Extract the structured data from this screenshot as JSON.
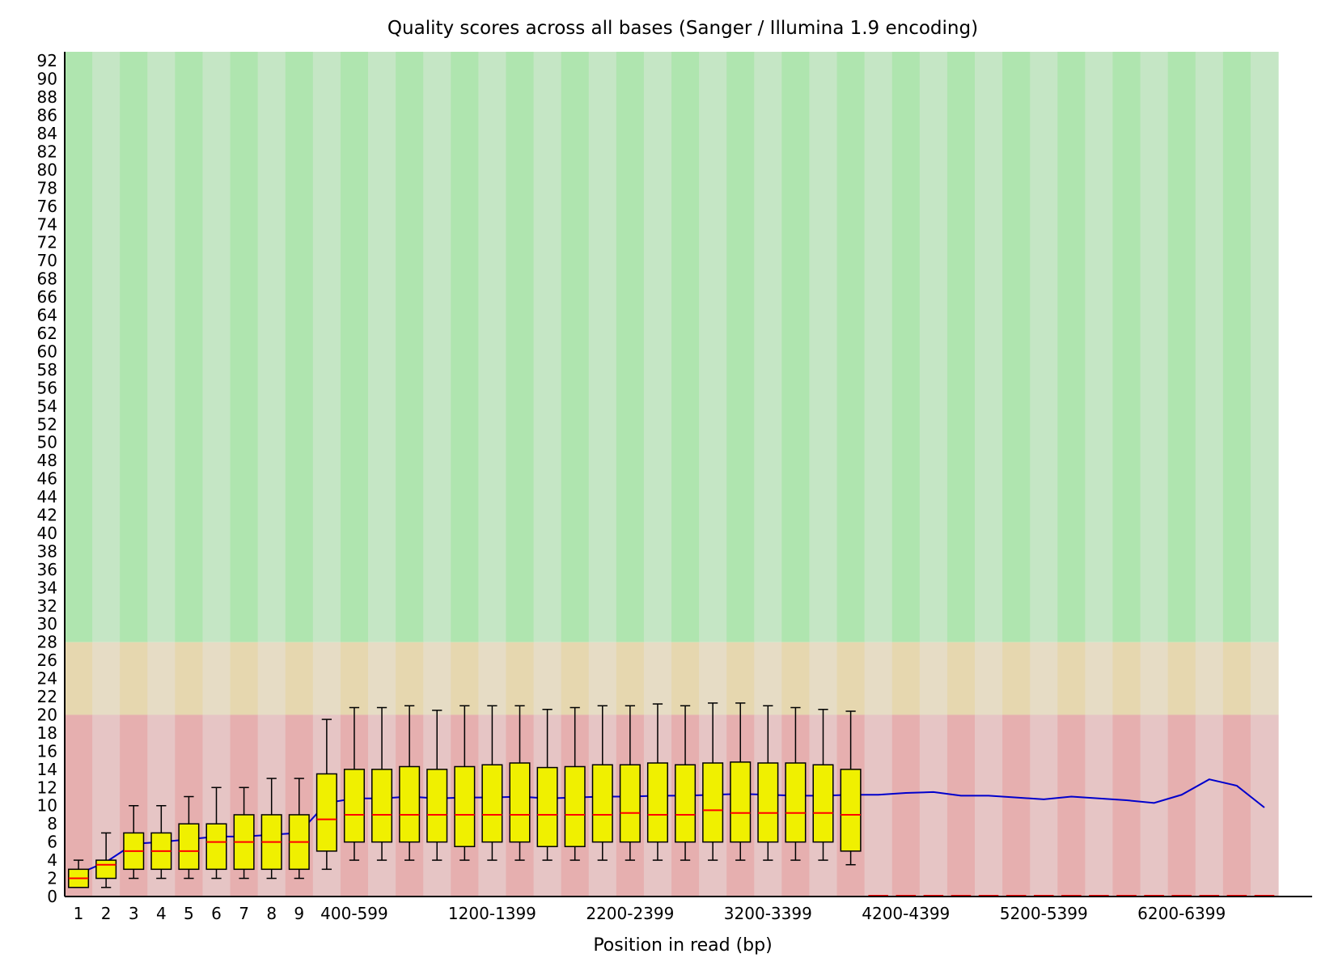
{
  "chart_data": {
    "type": "boxplot",
    "title": "Quality scores across all bases (Sanger / Illumina 1.9 encoding)",
    "xlabel": "Position in read (bp)",
    "ylabel": "",
    "ylim": [
      0,
      93
    ],
    "yticks": [
      0,
      2,
      4,
      6,
      8,
      10,
      12,
      14,
      16,
      18,
      20,
      22,
      24,
      26,
      28,
      30,
      32,
      34,
      36,
      38,
      40,
      42,
      44,
      46,
      48,
      50,
      52,
      54,
      56,
      58,
      60,
      62,
      64,
      66,
      68,
      70,
      72,
      74,
      76,
      78,
      80,
      82,
      84,
      86,
      88,
      90,
      92
    ],
    "x_tick_labels": [
      "1",
      "2",
      "3",
      "4",
      "5",
      "6",
      "7",
      "8",
      "9",
      "400-599",
      "1200-1399",
      "2200-2399",
      "3200-3399",
      "4200-4399",
      "5200-5399",
      "6200-6399"
    ],
    "x_tick_label_bins": [
      0,
      1,
      2,
      3,
      4,
      5,
      6,
      7,
      8,
      10,
      15,
      20,
      25,
      30,
      35,
      40
    ],
    "bin_count": 44,
    "background_zones": [
      {
        "name": "good",
        "from": 28,
        "to": 93,
        "colors": [
          "#afe5af",
          "#c5e6c5"
        ]
      },
      {
        "name": "reasonable",
        "from": 20,
        "to": 28,
        "colors": [
          "#e6d7af",
          "#e6dcc5"
        ]
      },
      {
        "name": "poor",
        "from": 0,
        "to": 20,
        "colors": [
          "#e6afaf",
          "#e6c5c5"
        ]
      }
    ],
    "colors": {
      "box": "#f0f000",
      "median": "#ff0000",
      "mean_line": "#0000cc",
      "whisker": "#000000",
      "axis": "#000000"
    },
    "boxes": [
      {
        "bin": 0,
        "whisker_low": 1,
        "q1": 1,
        "median": 2,
        "q3": 3,
        "whisker_high": 4
      },
      {
        "bin": 1,
        "whisker_low": 1,
        "q1": 2,
        "median": 3.5,
        "q3": 4,
        "whisker_high": 7
      },
      {
        "bin": 2,
        "whisker_low": 2,
        "q1": 3,
        "median": 5,
        "q3": 7,
        "whisker_high": 10
      },
      {
        "bin": 3,
        "whisker_low": 2,
        "q1": 3,
        "median": 5,
        "q3": 7,
        "whisker_high": 10
      },
      {
        "bin": 4,
        "whisker_low": 2,
        "q1": 3,
        "median": 5,
        "q3": 8,
        "whisker_high": 11
      },
      {
        "bin": 5,
        "whisker_low": 2,
        "q1": 3,
        "median": 6,
        "q3": 8,
        "whisker_high": 12
      },
      {
        "bin": 6,
        "whisker_low": 2,
        "q1": 3,
        "median": 6,
        "q3": 9,
        "whisker_high": 12
      },
      {
        "bin": 7,
        "whisker_low": 2,
        "q1": 3,
        "median": 6,
        "q3": 9,
        "whisker_high": 13
      },
      {
        "bin": 8,
        "whisker_low": 2,
        "q1": 3,
        "median": 6,
        "q3": 9,
        "whisker_high": 13
      },
      {
        "bin": 9,
        "whisker_low": 3,
        "q1": 5,
        "median": 8.5,
        "q3": 13.5,
        "whisker_high": 19.5
      },
      {
        "bin": 10,
        "whisker_low": 4,
        "q1": 6,
        "median": 9,
        "q3": 14,
        "whisker_high": 20.8
      },
      {
        "bin": 11,
        "whisker_low": 4,
        "q1": 6,
        "median": 9,
        "q3": 14,
        "whisker_high": 20.8
      },
      {
        "bin": 12,
        "whisker_low": 4,
        "q1": 6,
        "median": 9,
        "q3": 14.3,
        "whisker_high": 21
      },
      {
        "bin": 13,
        "whisker_low": 4,
        "q1": 6,
        "median": 9,
        "q3": 14,
        "whisker_high": 20.5
      },
      {
        "bin": 14,
        "whisker_low": 4,
        "q1": 5.5,
        "median": 9,
        "q3": 14.3,
        "whisker_high": 21
      },
      {
        "bin": 15,
        "whisker_low": 4,
        "q1": 6,
        "median": 9,
        "q3": 14.5,
        "whisker_high": 21
      },
      {
        "bin": 16,
        "whisker_low": 4,
        "q1": 6,
        "median": 9,
        "q3": 14.7,
        "whisker_high": 21
      },
      {
        "bin": 17,
        "whisker_low": 4,
        "q1": 5.5,
        "median": 9,
        "q3": 14.2,
        "whisker_high": 20.6
      },
      {
        "bin": 18,
        "whisker_low": 4,
        "q1": 5.5,
        "median": 9,
        "q3": 14.3,
        "whisker_high": 20.8
      },
      {
        "bin": 19,
        "whisker_low": 4,
        "q1": 6,
        "median": 9,
        "q3": 14.5,
        "whisker_high": 21
      },
      {
        "bin": 20,
        "whisker_low": 4,
        "q1": 6,
        "median": 9.2,
        "q3": 14.5,
        "whisker_high": 21
      },
      {
        "bin": 21,
        "whisker_low": 4,
        "q1": 6,
        "median": 9,
        "q3": 14.7,
        "whisker_high": 21.2
      },
      {
        "bin": 22,
        "whisker_low": 4,
        "q1": 6,
        "median": 9,
        "q3": 14.5,
        "whisker_high": 21
      },
      {
        "bin": 23,
        "whisker_low": 4,
        "q1": 6,
        "median": 9.5,
        "q3": 14.7,
        "whisker_high": 21.3
      },
      {
        "bin": 24,
        "whisker_low": 4,
        "q1": 6,
        "median": 9.2,
        "q3": 14.8,
        "whisker_high": 21.3
      },
      {
        "bin": 25,
        "whisker_low": 4,
        "q1": 6,
        "median": 9.2,
        "q3": 14.7,
        "whisker_high": 21
      },
      {
        "bin": 26,
        "whisker_low": 4,
        "q1": 6,
        "median": 9.2,
        "q3": 14.7,
        "whisker_high": 20.8
      },
      {
        "bin": 27,
        "whisker_low": 4,
        "q1": 6,
        "median": 9.2,
        "q3": 14.5,
        "whisker_high": 20.6
      },
      {
        "bin": 28,
        "whisker_low": 3.5,
        "q1": 5,
        "median": 9,
        "q3": 14,
        "whisker_high": 20.4
      }
    ],
    "mean_line": {
      "bins": [
        0,
        1,
        2,
        3,
        4,
        5,
        6,
        7,
        8,
        9,
        10,
        11,
        12,
        13,
        14,
        15,
        16,
        17,
        18,
        19,
        20,
        21,
        22,
        23,
        24,
        25,
        26,
        27,
        28,
        29,
        30,
        31,
        32,
        33,
        34,
        35,
        36,
        37,
        38,
        39,
        40,
        41,
        42,
        43
      ],
      "values": [
        2.5,
        3.8,
        5.8,
        6.0,
        6.3,
        6.6,
        6.6,
        6.8,
        7.0,
        10.3,
        10.8,
        10.8,
        11.0,
        10.8,
        10.9,
        10.9,
        11.0,
        10.8,
        10.9,
        11.0,
        11.0,
        11.1,
        11.1,
        11.2,
        11.3,
        11.2,
        11.1,
        11.1,
        11.2,
        11.2,
        11.4,
        11.5,
        11.1,
        11.1,
        10.9,
        10.7,
        11.0,
        10.8,
        10.6,
        10.3,
        11.2,
        12.9,
        12.2,
        9.8
      ]
    }
  }
}
